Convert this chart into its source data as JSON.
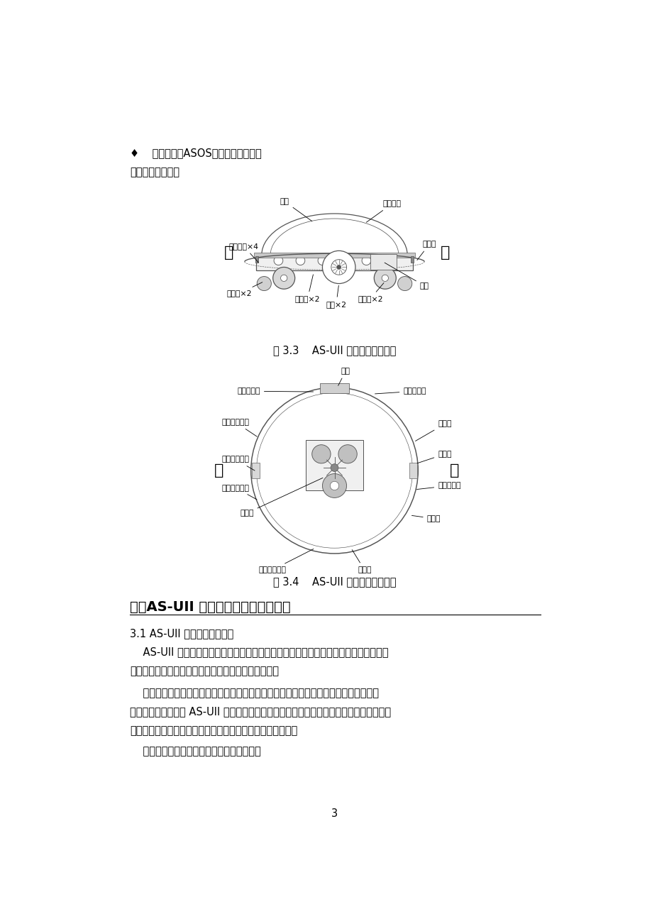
{
  "background_color": "#ffffff",
  "page_width": 9.2,
  "page_height": 13.02,
  "dpi": 100,
  "text_color": "#000000",
  "bullet_line": "♦    操作系统：ASOS多任务操作系统。",
  "body_intro": "身体结溄图如下：",
  "fig33_caption": "图 3.3    AS-UII 智能机器人侧视图",
  "fig34_caption": "图 3.4    AS-UII 智能机器人俧视图",
  "section_title": "三、AS-UII 智能机器人的动力与驱动",
  "subsection_title": "3.1 AS-UII 智能机器人的动力",
  "para1": "    AS-UII 智能机器人的动力来源于位于机器人底盘内的电池，电池提供电能，而机器人",
  "para1b": "运动需要的是动能，而将电能转化为动能的是电动机。",
  "para2": "    以电为原动力产生机械旋转动力的装置叫做电动机。电动机如果是依靠直流电源工作，",
  "para2b": "即称为直流电机。在 AS-UII 智能机器人中，直流电机将轴的旋转运动输入到齿轮算，然后",
  "para2c": "齿轮算的输出轴控制轮子转动，从而驱动整个机器人的运动。",
  "para3": "    直流电机的电压大小影响它的转速和扭矩。",
  "page_number": "3",
  "fig33_front": "前",
  "fig33_back": "后",
  "fig34_front": "前",
  "fig34_back": "后",
  "label_waike": "外壳",
  "label_toumingdinggai": "透明顶盖",
  "label_pengzhuanghuan": "碍撞环",
  "label_pengzhuangkaiguan": "碍撞开关×4",
  "label_daoxianglun": "导向轮×2",
  "label_chiluntou": "齿轮头×2",
  "label_zhudongchun": "主动轮×2",
  "label_dianchi": "电池",
  "label_mapan": "码盘×2",
  "label34_zuoguangmin": "左光敏传感器",
  "label34_youhongwai": "右红外发射管",
  "label34_hongwaishoujie": "红外接收模块",
  "label34_zuohongwai": "左红外发射管",
  "label34_kongzhiban": "控制板",
  "label34_zuoguangmin2": "左光敏传感器",
  "label34_youguangmin": "右光敏传器",
  "label34_laba": "喊叭",
  "label34_yejing": "液晶显示器",
  "label34_tongxinkou": "通信口",
  "label34_fuweijian": "复位键",
  "label34_chongdiancha": "充电器插槽",
  "label34_zhukaiguan": "主开关",
  "label34_maikefeng": "麦克风"
}
